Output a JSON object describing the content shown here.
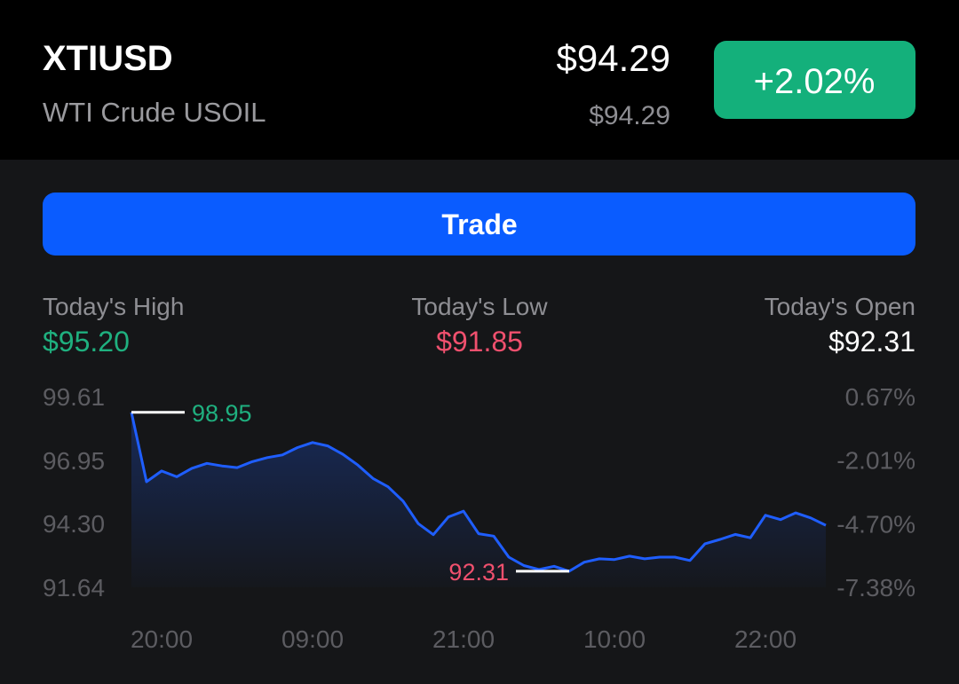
{
  "header": {
    "symbol": "XTIUSD",
    "name": "WTI Crude USOIL",
    "price": "$94.29",
    "subprice": "$94.29",
    "change": "+2.02%"
  },
  "button": "Trade",
  "stats": [
    {
      "label": "Today's High",
      "value": "$95.20"
    },
    {
      "label": "Today's Low",
      "value": "$91.85"
    },
    {
      "label": "Today's Open",
      "value": "$92.31"
    }
  ],
  "chart_data": {
    "type": "line",
    "color": "#1f5eff",
    "categories": [
      null,
      null,
      "20:00",
      null,
      null,
      null,
      null,
      null,
      null,
      null,
      null,
      null,
      "09:00",
      null,
      null,
      null,
      null,
      null,
      null,
      null,
      null,
      null,
      "21:00",
      null,
      null,
      null,
      null,
      null,
      null,
      null,
      null,
      null,
      "10:00",
      null,
      null,
      null,
      null,
      null,
      null,
      null,
      null,
      null,
      "22:00",
      null,
      null,
      null,
      null
    ],
    "values": [
      98.95,
      96.05,
      96.5,
      96.26,
      96.61,
      96.82,
      96.71,
      96.64,
      96.89,
      97.06,
      97.17,
      97.48,
      97.69,
      97.55,
      97.2,
      96.75,
      96.19,
      95.84,
      95.24,
      94.3,
      93.84,
      94.58,
      94.82,
      93.88,
      93.78,
      92.9,
      92.55,
      92.38,
      92.52,
      92.31,
      92.69,
      92.83,
      92.8,
      92.94,
      92.83,
      92.9,
      92.9,
      92.76,
      93.46,
      93.64,
      93.85,
      93.71,
      94.65,
      94.47,
      94.75,
      94.54,
      94.23
    ],
    "ylim": [
      91.64,
      99.61
    ],
    "yticks": [
      99.61,
      96.95,
      {
        "value": 94.3,
        "label": "94.30"
      },
      91.64
    ],
    "y2lim": [
      -7.38,
      0.67
    ],
    "y2ticks": [
      {
        "value": 0.67,
        "label": "0.67%"
      },
      {
        "value": -2.01,
        "label": "-2.01%"
      },
      {
        "value": -4.7,
        "label": "-4.70%"
      },
      {
        "value": -7.38,
        "label": "-7.38%"
      }
    ],
    "high_marker": 98.95,
    "low_marker": 92.31
  }
}
